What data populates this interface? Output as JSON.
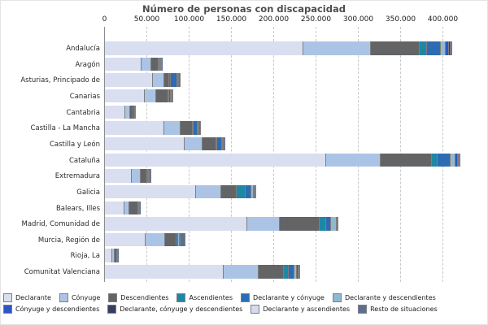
{
  "chart_data": {
    "type": "bar",
    "orientation": "horizontal",
    "stacked": true,
    "title": "Número de personas con discapacidad",
    "x_axis": {
      "position": "top",
      "min": 0,
      "max": 420000,
      "ticks": [
        0,
        50000,
        100000,
        150000,
        200000,
        250000,
        300000,
        350000,
        400000
      ],
      "tick_labels": [
        "0",
        "50.000",
        "100.000",
        "150.000",
        "200.000",
        "250.000",
        "300.000",
        "350.000",
        "400.000"
      ],
      "gridlines": "dashed"
    },
    "legend_position": "bottom",
    "categories": [
      "Andalucía",
      "Aragón",
      "Asturias, Principado de",
      "Canarias",
      "Cantabria",
      "Castilla - La Mancha",
      "Castilla y León",
      "Cataluña",
      "Extremadura",
      "Galicia",
      "Balears, Illes",
      "Madrid, Comunidad de",
      "Murcia, Región de",
      "Rioja, La",
      "Comunitat Valenciana"
    ],
    "series": [
      {
        "name": "Declarante",
        "color": "#d9def0",
        "values": [
          235000,
          44000,
          57000,
          48000,
          24700,
          71000,
          95000,
          261800,
          32000,
          107900,
          23300,
          168700,
          48700,
          9600,
          140900
        ]
      },
      {
        "name": "Cónyuge",
        "color": "#abc4e6",
        "values": [
          80000,
          11200,
          13400,
          12800,
          5400,
          18900,
          21100,
          64600,
          10900,
          29800,
          6400,
          38700,
          23300,
          2600,
          41000
        ]
      },
      {
        "name": "Descendientes",
        "color": "#636466",
        "values": [
          58000,
          8600,
          6400,
          14400,
          3800,
          14700,
          15700,
          60800,
          7700,
          18200,
          10200,
          47100,
          12800,
          2900,
          30400
        ]
      },
      {
        "name": "Ascendientes",
        "color": "#1e87a6",
        "values": [
          8600,
          800,
          1900,
          1000,
          400,
          900,
          1600,
          7000,
          500,
          10600,
          300,
          7400,
          400,
          100,
          5500
        ]
      },
      {
        "name": "Declarante y cónyuge",
        "color": "#2d6cb4",
        "values": [
          16300,
          1600,
          7000,
          2000,
          1300,
          4800,
          5100,
          15400,
          1600,
          7100,
          600,
          5500,
          1900,
          300,
          6400
        ]
      },
      {
        "name": "Declarante y descendientes",
        "color": "#90b9cf",
        "values": [
          5800,
          500,
          900,
          800,
          300,
          800,
          1200,
          5500,
          400,
          2500,
          300,
          7400,
          400,
          100,
          3200
        ]
      },
      {
        "name": "Cónyuge y descendientes",
        "color": "#2e55c4",
        "values": [
          3800,
          400,
          400,
          1000,
          200,
          500,
          800,
          2500,
          300,
          1200,
          200,
          400,
          1600,
          100,
          1500
        ]
      },
      {
        "name": "Declarante, cónyuge y descendientes",
        "color": "#363d63",
        "values": [
          1200,
          200,
          300,
          300,
          100,
          300,
          400,
          1000,
          200,
          500,
          100,
          200,
          400,
          50,
          700
        ]
      },
      {
        "name": "Declarante y ascendientes",
        "color": "#d5daee",
        "values": [
          800,
          200,
          300,
          200,
          100,
          200,
          300,
          800,
          100,
          300,
          100,
          200,
          200,
          50,
          400
        ]
      },
      {
        "name": "Resto de situaciones",
        "color": "#5d6e96",
        "values": [
          1500,
          500,
          1900,
          800,
          400,
          1500,
          1800,
          1600,
          2000,
          1200,
          500,
          400,
          5800,
          300,
          1500
        ]
      }
    ]
  }
}
